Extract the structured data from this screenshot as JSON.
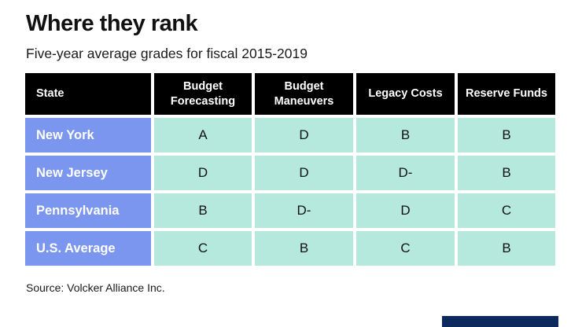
{
  "title": "Where they rank",
  "subtitle": "Five-year average grades for fiscal 2015-2019",
  "table": {
    "columns": [
      {
        "label": "State"
      },
      {
        "label": "Budget Forecasting"
      },
      {
        "label": "Budget Maneuvers"
      },
      {
        "label": "Legacy Costs"
      },
      {
        "label": "Reserve Funds"
      }
    ],
    "rows": [
      {
        "state": "New York",
        "grades": [
          "A",
          "D",
          "B",
          "B"
        ]
      },
      {
        "state": "New Jersey",
        "grades": [
          "D",
          "D",
          "D-",
          "B"
        ]
      },
      {
        "state": "Pennsylvania",
        "grades": [
          "B",
          "D-",
          "D",
          "C"
        ]
      },
      {
        "state": "U.S. Average",
        "grades": [
          "C",
          "B",
          "C",
          "B"
        ]
      }
    ]
  },
  "source": "Source: Volcker Alliance Inc.",
  "colors": {
    "background": "#ffffff",
    "header_bg": "#000000",
    "header_text": "#ffffff",
    "state_cell_bg": "#7b96ee",
    "state_cell_text": "#ffffff",
    "grade_cell_bg": "#b6e9dd",
    "grade_cell_text": "#111111",
    "brand_bar": "#0c2a5d"
  },
  "chart_data": {
    "type": "table",
    "title": "Where they rank",
    "subtitle": "Five-year average grades for fiscal 2015-2019",
    "columns": [
      "State",
      "Budget Forecasting",
      "Budget Maneuvers",
      "Legacy Costs",
      "Reserve Funds"
    ],
    "rows": [
      [
        "New York",
        "A",
        "D",
        "B",
        "B"
      ],
      [
        "New Jersey",
        "D",
        "D",
        "D-",
        "B"
      ],
      [
        "Pennsylvania",
        "B",
        "D-",
        "D",
        "C"
      ],
      [
        "U.S. Average",
        "C",
        "B",
        "C",
        "B"
      ]
    ],
    "source": "Source: Volcker Alliance Inc.",
    "layout_hints": {
      "header_style": "black background, white text",
      "state_column_style": "periwinkle blue background, white text",
      "grade_cells_style": "mint teal background, black text",
      "grid": "white gaps between all cells"
    }
  }
}
